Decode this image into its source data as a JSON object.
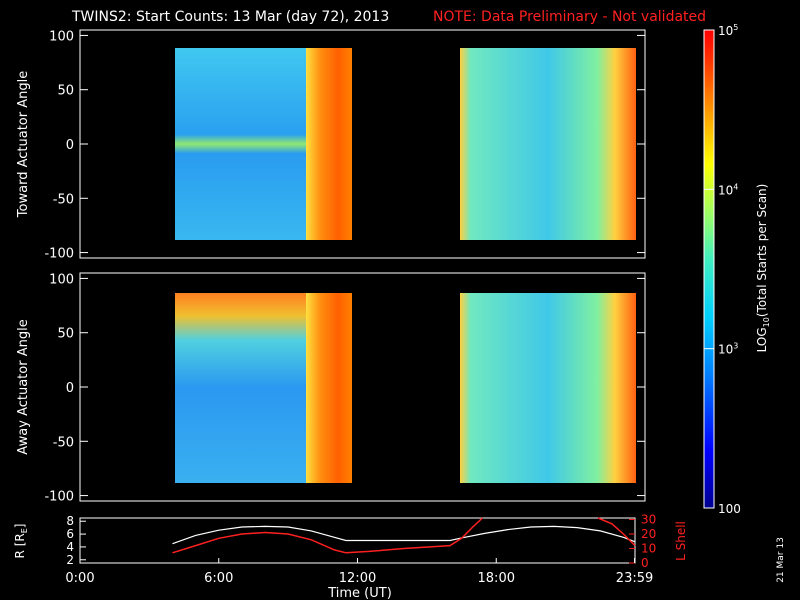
{
  "title": {
    "main": "TWINS2: Start Counts: 13 Mar (day  72), 2013",
    "note": "NOTE: Data Preliminary - Not validated"
  },
  "colors": {
    "background": "#000000",
    "text": "#ffffff",
    "note": "#ff2020",
    "r_line": "#ffffff",
    "lshell_line": "#ff2020"
  },
  "chart_data": [
    {
      "name": "toward-panel",
      "type": "heatmap",
      "ylabel": "Toward Actuator Angle",
      "ylim": [
        -105,
        105
      ],
      "yticks": [
        100,
        50,
        0,
        -50,
        -100
      ],
      "data_ylim": [
        -90,
        90
      ],
      "xlim": [
        0,
        24
      ],
      "data_segments": [
        [
          4.0,
          11.5
        ],
        [
          16.1,
          23.9
        ]
      ],
      "colormap_range": [
        100,
        100000
      ],
      "features": "Low counts (blue, ~1e3) in mid-segment; high counts (orange/red, ~1e4-1e5) near 0 deg, at segment edges and after ~10:30 UT"
    },
    {
      "name": "away-panel",
      "type": "heatmap",
      "ylabel": "Away Actuator Angle",
      "ylim": [
        -105,
        105
      ],
      "yticks": [
        100,
        50,
        0,
        -50,
        -100
      ],
      "data_ylim": [
        -90,
        90
      ],
      "xlim": [
        0,
        24
      ],
      "data_segments": [
        [
          4.0,
          11.5
        ],
        [
          16.1,
          23.9
        ]
      ],
      "colormap_range": [
        100,
        100000
      ],
      "features": "High counts (red/orange) near +90 deg early in first segment; blue (~1e3) body; red stripes after ~10:30 UT and ~22:30 UT"
    },
    {
      "name": "orbit-panel",
      "type": "line",
      "xlabel": "Time (UT)",
      "xticks": [
        "0:00",
        "6:00",
        "12:00",
        "18:00",
        "23:59"
      ],
      "xtick_values": [
        0,
        6,
        12,
        18,
        23.98
      ],
      "xlim": [
        0,
        24
      ],
      "ylabel_left": "R [R",
      "ylabel_left_sub": "E",
      "ylabel_left_close": "]",
      "yticks_left": [
        2,
        4,
        6,
        8
      ],
      "ylim_left": [
        1.5,
        8.5
      ],
      "ylabel_right": "L Shell",
      "yticks_right": [
        0,
        10,
        20,
        30
      ],
      "ylim_right": [
        0,
        31
      ],
      "series": [
        {
          "axis": "left",
          "x": [
            4.0,
            5.0,
            6.0,
            7.0,
            8.0,
            9.0,
            10.0,
            11.0,
            11.5,
            12.5,
            14.0,
            16.0,
            16.5,
            17.5,
            18.5,
            19.5,
            20.5,
            21.5,
            22.5,
            23.5,
            24.0
          ],
          "y": [
            4.5,
            5.8,
            6.6,
            7.1,
            7.2,
            7.1,
            6.5,
            5.5,
            5.0,
            5.0,
            5.0,
            5.0,
            5.4,
            6.1,
            6.7,
            7.1,
            7.2,
            7.0,
            6.5,
            5.5,
            4.8
          ]
        },
        {
          "axis": "right",
          "x": [
            4.0,
            5.0,
            6.0,
            7.0,
            8.0,
            9.0,
            10.0,
            11.0,
            11.5,
            12.5,
            14.0,
            16.0,
            16.5,
            17.0,
            17.4,
            22.4,
            23.0,
            23.5,
            24.0
          ],
          "y": [
            7,
            12,
            17,
            20,
            21,
            20,
            16,
            9,
            7,
            8,
            10,
            12,
            17,
            25,
            31,
            31,
            27,
            20,
            12
          ]
        }
      ]
    }
  ],
  "colorbar": {
    "label_parts": [
      "LOG",
      "10",
      "(Total Starts per Scan)"
    ],
    "ticks": [
      {
        "value": 100000,
        "base": "10",
        "exp": "5"
      },
      {
        "value": 10000,
        "base": "10",
        "exp": "4"
      },
      {
        "value": 1000,
        "base": "10",
        "exp": "3"
      },
      {
        "value": 100,
        "base": "100",
        "exp": ""
      }
    ],
    "range": [
      100,
      100000
    ]
  },
  "date_stamp": "21 Mar 13"
}
